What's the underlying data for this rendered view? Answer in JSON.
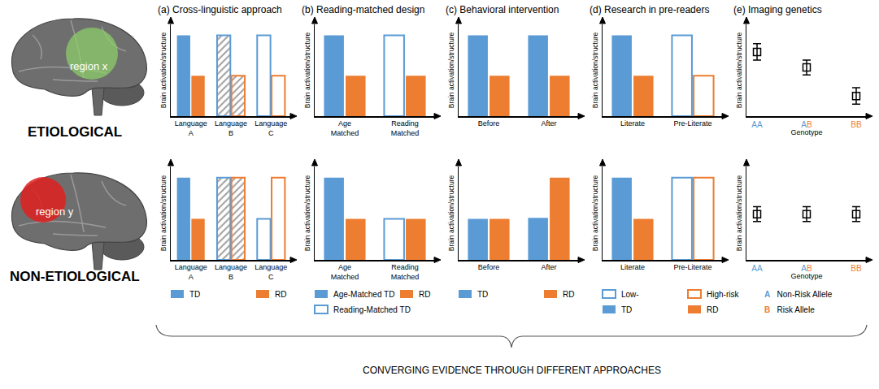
{
  "rows": [
    {
      "label": "ETIOLOGICAL",
      "region": "region x",
      "region_color": "#8fd16a"
    },
    {
      "label": "NON-ETIOLOGICAL",
      "region": "region y",
      "region_color": "#e02020"
    }
  ],
  "alleles": [
    {
      "symbol": "A",
      "name": "Non-Risk Allele",
      "color": "#5b9bd5"
    },
    {
      "symbol": "B",
      "name": "Risk Allele",
      "color": "#ed7d31"
    }
  ],
  "caption": "CONVERGING EVIDENCE THROUGH DIFFERENT APPROACHES",
  "chart_data": [
    {
      "type": "bar",
      "title": "(a) Cross-linguistic approach",
      "y_label": "Brain activation/structure",
      "categories": [
        "Language A",
        "Language B",
        "Language C"
      ],
      "ylim": [
        0,
        10
      ],
      "tick_labels": "x",
      "series": [
        {
          "color": "#5b9bd5",
          "marker": "solid",
          "values": [
            8.8,
            8.8,
            8.8
          ]
        },
        {
          "color": "#ed7d31",
          "marker": "solid",
          "values": [
            4.4,
            4.4,
            4.4
          ]
        }
      ]
    },
    {
      "type": "bar",
      "title": "(b) Reading-matched design",
      "y_label": "Brain activation/structure",
      "categories": [
        "Age Matched",
        "Reading Matched"
      ],
      "ylim": [
        0,
        10
      ],
      "tick_labels": "x",
      "series": [
        {
          "color": "#5b9bd5",
          "marker": "solid",
          "values": [
            8.8,
            null
          ]
        },
        {
          "color": "#ed7d31",
          "marker": "solid",
          "values": [
            4.4,
            4.4
          ]
        },
        {
          "color": "#5b9bd5",
          "marker": "hollow",
          "values": [
            null,
            8.8
          ]
        }
      ]
    },
    {
      "type": "bar",
      "title": "(c) Behavioral intervention",
      "y_label": "Brain activation/structure",
      "categories": [
        "Before",
        "After"
      ],
      "ylim": [
        0,
        10
      ],
      "tick_labels": "x",
      "series": [
        {
          "color": "#5b9bd5",
          "marker": "solid",
          "values": [
            8.8,
            8.8
          ]
        },
        {
          "color": "#ed7d31",
          "marker": "solid",
          "values": [
            4.4,
            4.4
          ]
        }
      ]
    },
    {
      "type": "bar",
      "title": "(d) Research in pre-readers",
      "y_label": "Brain activation/structure",
      "categories": [
        "Literate",
        "Pre-Literate"
      ],
      "ylim": [
        0,
        10
      ],
      "tick_labels": "x",
      "series": [
        {
          "color": "#5b9bd5",
          "marker": "hollow",
          "values": [
            null,
            8.8
          ]
        },
        {
          "color": "#ed7d31",
          "marker": "hollow",
          "values": [
            null,
            4.4
          ]
        },
        {
          "color": "#5b9bd5",
          "marker": "solid",
          "values": [
            8.8,
            null
          ]
        },
        {
          "color": "#ed7d31",
          "marker": "solid",
          "values": [
            4.4,
            null
          ]
        }
      ]
    },
    {
      "type": "scatter",
      "title": "(e) Imaging genetics",
      "y_label": "Brain activation/structure",
      "x_label": "Genotype",
      "categories": [
        "AA",
        "AB",
        "BB"
      ],
      "values": [
        7.0,
        5.3,
        2.2
      ],
      "errors": [
        0.9,
        0.8,
        0.9
      ],
      "marker": "square-open",
      "ylim": [
        0,
        10
      ],
      "tick_labels": "x"
    },
    {
      "type": "bar",
      "y_label": "Brain activation/structure",
      "legend": "bottom",
      "categories": [
        "Language A",
        "Language B",
        "Language C"
      ],
      "ylim": [
        0,
        10
      ],
      "tick_labels": "x",
      "series": [
        {
          "name": "TD",
          "color": "#5b9bd5",
          "marker": "solid",
          "values": [
            8.8,
            8.8,
            4.4
          ]
        },
        {
          "name": "RD",
          "color": "#ed7d31",
          "marker": "solid",
          "values": [
            4.4,
            8.8,
            8.8
          ]
        }
      ]
    },
    {
      "type": "bar",
      "y_label": "Brain activation/structure",
      "legend": "bottom",
      "categories": [
        "Age Matched",
        "Reading Matched"
      ],
      "ylim": [
        0,
        10
      ],
      "tick_labels": "x",
      "series": [
        {
          "name": "Age-Matched TD",
          "color": "#5b9bd5",
          "marker": "solid",
          "values": [
            8.8,
            null
          ]
        },
        {
          "name": "RD",
          "color": "#ed7d31",
          "marker": "solid",
          "values": [
            4.4,
            4.4
          ]
        },
        {
          "name": "Reading-Matched TD",
          "color": "#5b9bd5",
          "marker": "hollow",
          "values": [
            null,
            4.4
          ]
        }
      ]
    },
    {
      "type": "bar",
      "y_label": "Brain activation/structure",
      "legend": "bottom",
      "categories": [
        "Before",
        "After"
      ],
      "ylim": [
        0,
        10
      ],
      "tick_labels": "x",
      "series": [
        {
          "name": "TD",
          "color": "#5b9bd5",
          "marker": "solid",
          "values": [
            4.4,
            4.5
          ]
        },
        {
          "name": "RD",
          "color": "#ed7d31",
          "marker": "solid",
          "values": [
            4.4,
            8.8
          ]
        }
      ]
    },
    {
      "type": "bar",
      "y_label": "Brain activation/structure",
      "legend": "bottom",
      "categories": [
        "Literate",
        "Pre-Literate"
      ],
      "ylim": [
        0,
        10
      ],
      "tick_labels": "x",
      "series": [
        {
          "name": "Low-",
          "color": "#5b9bd5",
          "marker": "hollow",
          "values": [
            null,
            8.8
          ]
        },
        {
          "name": "High-risk",
          "color": "#ed7d31",
          "marker": "hollow",
          "values": [
            null,
            8.8
          ]
        },
        {
          "name": "TD",
          "color": "#5b9bd5",
          "marker": "solid",
          "values": [
            8.8,
            null
          ]
        },
        {
          "name": "RD",
          "color": "#ed7d31",
          "marker": "solid",
          "values": [
            4.4,
            null
          ]
        }
      ]
    },
    {
      "type": "scatter",
      "y_label": "Brain activation/structure",
      "x_label": "Genotype",
      "legend": "bottom",
      "categories": [
        "AA",
        "AB",
        "BB"
      ],
      "values": [
        4.9,
        4.9,
        4.9
      ],
      "errors": [
        0.8,
        0.8,
        0.8
      ],
      "marker": "square-open",
      "ylim": [
        0,
        10
      ],
      "tick_labels": "x"
    }
  ]
}
